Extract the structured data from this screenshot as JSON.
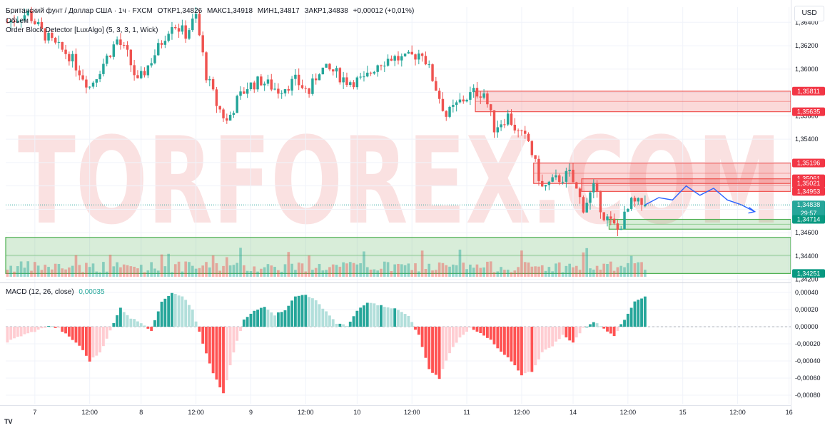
{
  "header": {
    "symbol": "Британский фунт / Доллар США · 1ч · FXCM",
    "open": "ОТКР1,34826",
    "high": "МАКС1,34918",
    "low": "МИН1,34817",
    "close": "ЗАКР1,34838",
    "change": "+0,00012 (+0,01%)",
    "volume_label": "Объем",
    "indicator_label": "Order Block Detector [LuxAlgo] (5, 3, 3, 1, Wick)",
    "macd_label": "MACD (12, 26, close)",
    "macd_value": "0,00035",
    "currency": "USD"
  },
  "watermark": "TORFOREX.COM",
  "colors": {
    "up": "#26a69a",
    "down": "#ef5350",
    "bear_zone": "#ef5350",
    "bull_zone": "#4caf50",
    "forecast": "#2962ff",
    "watermark": "#f6c9c9"
  },
  "chart_data": [
    {
      "type": "candlestick",
      "ylim": [
        1.3418,
        1.3653
      ],
      "y_ticks": [
        "1,36400",
        "1,36200",
        "1,36000",
        "1,35800",
        "1,35600",
        "1,35400",
        "1,35200",
        "1,35000",
        "1,34800",
        "1,34600",
        "1,34400",
        "1,34200"
      ],
      "y_tick_values": [
        1.364,
        1.362,
        1.36,
        1.358,
        1.356,
        1.354,
        1.352,
        1.35,
        1.348,
        1.346,
        1.344,
        1.342
      ],
      "x_ticks": [
        "7",
        "12:00",
        "8",
        "12:00",
        "9",
        "12:00",
        "10",
        "12:00",
        "11",
        "12:00",
        "14",
        "12:00",
        "15",
        "12:00",
        "16"
      ],
      "x_tick_values": [
        8,
        24,
        39,
        55,
        71,
        87,
        102,
        118,
        134,
        150,
        165,
        181,
        197,
        213,
        228
      ],
      "anchors": [
        [
          0,
          1.364
        ],
        [
          6,
          1.3648
        ],
        [
          10,
          1.3632
        ],
        [
          14,
          1.362
        ],
        [
          18,
          1.3612
        ],
        [
          24,
          1.3585
        ],
        [
          28,
          1.3605
        ],
        [
          32,
          1.3625
        ],
        [
          35,
          1.3612
        ],
        [
          38,
          1.3588
        ],
        [
          44,
          1.3618
        ],
        [
          48,
          1.364
        ],
        [
          52,
          1.363
        ],
        [
          55,
          1.3645
        ],
        [
          58,
          1.3595
        ],
        [
          61,
          1.357
        ],
        [
          64,
          1.3555
        ],
        [
          67,
          1.3573
        ],
        [
          70,
          1.3585
        ],
        [
          74,
          1.359
        ],
        [
          79,
          1.3582
        ],
        [
          84,
          1.359
        ],
        [
          88,
          1.358
        ],
        [
          91,
          1.36
        ],
        [
          95,
          1.3598
        ],
        [
          99,
          1.359
        ],
        [
          104,
          1.359
        ],
        [
          108,
          1.3605
        ],
        [
          112,
          1.361
        ],
        [
          116,
          1.3608
        ],
        [
          121,
          1.3615
        ],
        [
          124,
          1.3592
        ],
        [
          128,
          1.356
        ],
        [
          132,
          1.3572
        ],
        [
          136,
          1.358
        ],
        [
          139,
          1.358
        ],
        [
          142,
          1.355
        ],
        [
          146,
          1.356
        ],
        [
          149,
          1.3545
        ],
        [
          152,
          1.3538
        ],
        [
          156,
          1.3498
        ],
        [
          160,
          1.3505
        ],
        [
          164,
          1.351
        ],
        [
          168,
          1.3482
        ],
        [
          171,
          1.3498
        ],
        [
          174,
          1.3475
        ],
        [
          178,
          1.3462
        ],
        [
          182,
          1.3485
        ],
        [
          186,
          1.3484
        ]
      ],
      "ohlc_last": {
        "open": 1.34826,
        "high": 1.34918,
        "low": 1.34817,
        "close": 1.34838
      },
      "price_labels": [
        {
          "text": "1,35811",
          "value": 1.35811,
          "kind": "bear"
        },
        {
          "text": "1,35635",
          "value": 1.35635,
          "kind": "bear"
        },
        {
          "text": "1,35196",
          "value": 1.35196,
          "kind": "bear"
        },
        {
          "text": "1,35061",
          "value": 1.35061,
          "kind": "bear"
        },
        {
          "text": "1,35021",
          "value": 1.35021,
          "kind": "bear"
        },
        {
          "text": "1,34953",
          "value": 1.34953,
          "kind": "bear"
        },
        {
          "text": "1,34838",
          "value": 1.34838,
          "kind": "price",
          "sub": "29:57"
        },
        {
          "text": "1,34714",
          "value": 1.34714,
          "kind": "bull"
        },
        {
          "text": "1,34251",
          "value": 1.34251,
          "kind": "bull"
        }
      ],
      "order_blocks": [
        {
          "kind": "bear",
          "top": 1.35811,
          "bottom": 1.35635,
          "from": 137
        },
        {
          "kind": "bear",
          "top": 1.35196,
          "bottom": 1.35021,
          "from": 154
        },
        {
          "kind": "bear",
          "top": 1.35061,
          "bottom": 1.34953,
          "from": 168
        },
        {
          "kind": "bull",
          "top": 1.34714,
          "bottom": 1.3463,
          "from": 176
        },
        {
          "kind": "bull",
          "top": 1.3456,
          "bottom": 1.34251,
          "from": 0
        }
      ],
      "forecast": [
        [
          186,
          1.34838
        ],
        [
          190,
          1.349
        ],
        [
          194,
          1.3488
        ],
        [
          198,
          1.35
        ],
        [
          202,
          1.3492
        ],
        [
          206,
          1.3498
        ],
        [
          210,
          1.3488
        ],
        [
          214,
          1.3484
        ],
        [
          218,
          1.3478
        ]
      ]
    },
    {
      "type": "histogram",
      "series": "MACD",
      "ylim": [
        -0.0009,
        0.0005
      ],
      "y_ticks": [
        "0,00040",
        "0,00020",
        "0,00000",
        "-0,00020",
        "-0,00040",
        "-0,00060",
        "-0,00080"
      ],
      "y_tick_values": [
        0.0004,
        0.0002,
        0,
        -0.0002,
        -0.0004,
        -0.0006,
        -0.0008
      ],
      "anchors": [
        [
          0,
          -0.00018
        ],
        [
          3,
          -0.00012
        ],
        [
          6,
          -8e-05
        ],
        [
          9,
          -4e-05
        ],
        [
          12,
          1e-05
        ],
        [
          15,
          -2e-05
        ],
        [
          18,
          -0.00012
        ],
        [
          21,
          -0.00022
        ],
        [
          24,
          -0.0004
        ],
        [
          27,
          -0.0003
        ],
        [
          30,
          -5e-05
        ],
        [
          33,
          0.00022
        ],
        [
          36,
          0.0001
        ],
        [
          39,
          5e-05
        ],
        [
          42,
          -5e-05
        ],
        [
          45,
          0.0003
        ],
        [
          48,
          0.0004
        ],
        [
          51,
          0.00036
        ],
        [
          54,
          0.0002
        ],
        [
          57,
          -0.0002
        ],
        [
          60,
          -0.00055
        ],
        [
          63,
          -0.00078
        ],
        [
          66,
          -0.0003
        ],
        [
          69,
          8e-05
        ],
        [
          72,
          0.00018
        ],
        [
          75,
          0.00024
        ],
        [
          78,
          0.00014
        ],
        [
          81,
          0.0002
        ],
        [
          84,
          0.00035
        ],
        [
          87,
          0.00038
        ],
        [
          90,
          0.0003
        ],
        [
          93,
          0.00018
        ],
        [
          96,
          4e-05
        ],
        [
          99,
          1e-05
        ],
        [
          102,
          0.00018
        ],
        [
          105,
          0.00028
        ],
        [
          108,
          0.00026
        ],
        [
          111,
          0.00022
        ],
        [
          114,
          0.0002
        ],
        [
          117,
          0.00012
        ],
        [
          120,
          -0.0001
        ],
        [
          123,
          -0.0005
        ],
        [
          126,
          -0.0006
        ],
        [
          129,
          -0.0003
        ],
        [
          132,
          -0.00012
        ],
        [
          135,
          -2e-05
        ],
        [
          138,
          -8e-05
        ],
        [
          141,
          -0.00016
        ],
        [
          144,
          -0.0003
        ],
        [
          147,
          -0.0004
        ],
        [
          150,
          -0.00056
        ],
        [
          153,
          -0.00052
        ],
        [
          156,
          -0.0003
        ],
        [
          159,
          -0.00022
        ],
        [
          162,
          -0.0001
        ],
        [
          165,
          -0.00018
        ],
        [
          168,
          -2e-05
        ],
        [
          171,
          6e-05
        ],
        [
          174,
          -2e-05
        ],
        [
          177,
          -0.0001
        ],
        [
          180,
          8e-05
        ],
        [
          183,
          0.0003
        ],
        [
          186,
          0.00035
        ]
      ]
    }
  ]
}
